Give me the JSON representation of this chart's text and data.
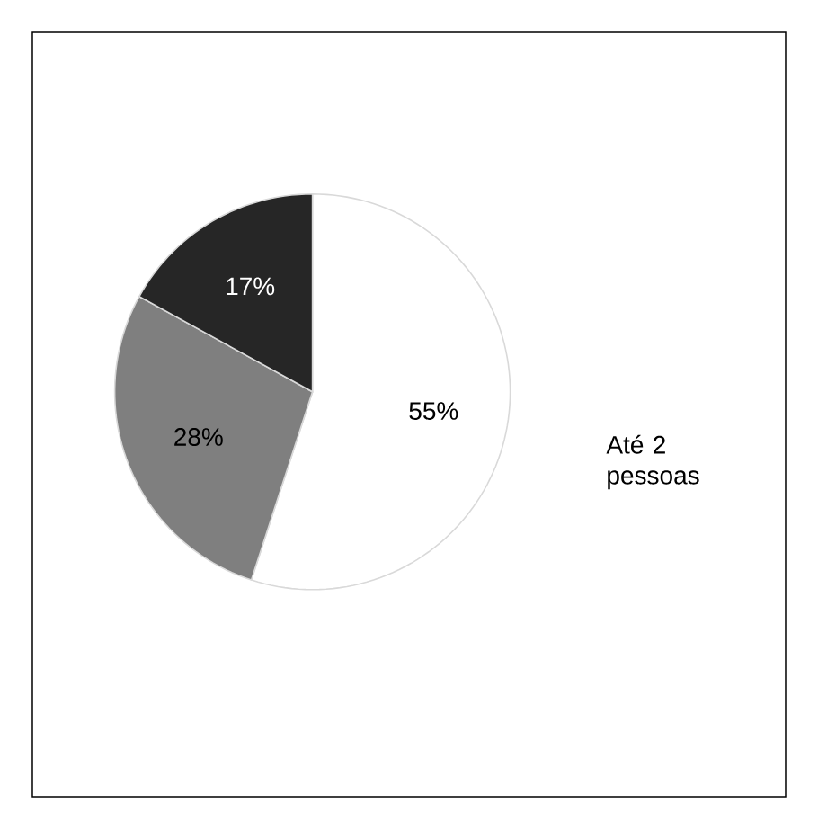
{
  "chart_data": {
    "type": "pie",
    "categories": [
      "Até 2 pessoas",
      null,
      null
    ],
    "values": [
      55,
      28,
      17
    ],
    "colors": [
      "#ffffff",
      "#7f7f7f",
      "#262626"
    ],
    "value_labels": [
      "55%",
      "28%",
      "17%"
    ]
  }
}
